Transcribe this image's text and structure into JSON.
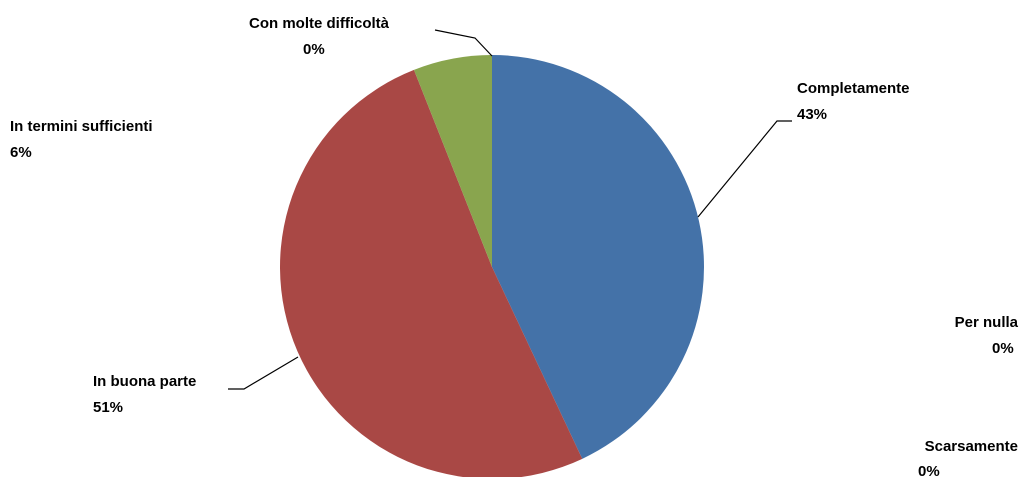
{
  "chart_data": {
    "type": "pie",
    "title": "",
    "categories": [
      "Completamente",
      "In buona parte",
      "In termini sufficienti",
      "Con molte difficoltà",
      "Per nulla",
      "Scarsamente"
    ],
    "values": [
      43,
      51,
      6,
      0,
      0,
      0
    ],
    "value_labels": [
      "43%",
      "51%",
      "6%",
      "0%",
      "0%",
      "0%"
    ],
    "colors": [
      "#4472A8",
      "#A94845",
      "#89A54E",
      "#71588F",
      "#4198AF",
      "#DB843D"
    ],
    "legend": "none",
    "start_angle_deg": 0,
    "direction": "clockwise"
  }
}
